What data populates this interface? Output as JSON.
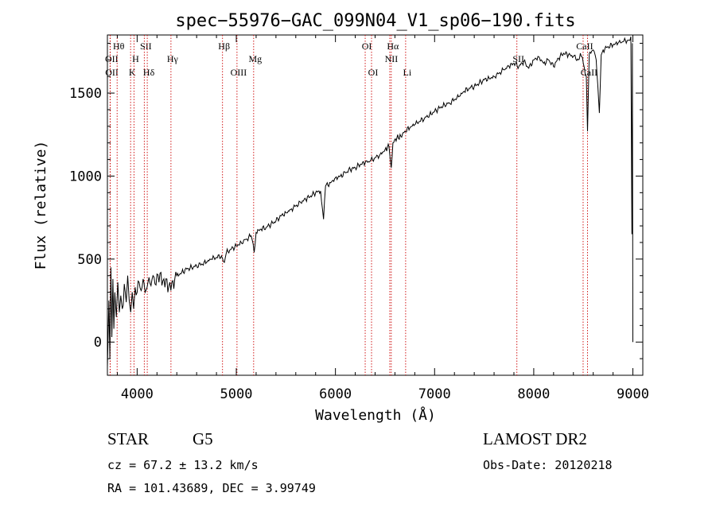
{
  "chart_data": {
    "type": "line",
    "title": "spec−55976−GAC_099N04_V1_sp06−190.fits",
    "xlabel": "Wavelength (Å)",
    "ylabel": "Flux (relative)",
    "xlim": [
      3700,
      9100
    ],
    "ylim": [
      -200,
      1850
    ],
    "x_ticks": [
      {
        "value": 4000,
        "label": "4000"
      },
      {
        "value": 5000,
        "label": "5000"
      },
      {
        "value": 6000,
        "label": "6000"
      },
      {
        "value": 7000,
        "label": "7000"
      },
      {
        "value": 8000,
        "label": "8000"
      },
      {
        "value": 9000,
        "label": "9000"
      }
    ],
    "y_ticks": [
      {
        "value": 0,
        "label": "0"
      },
      {
        "value": 500,
        "label": "500"
      },
      {
        "value": 1000,
        "label": "1000"
      },
      {
        "value": 1500,
        "label": "1500"
      }
    ],
    "series": [
      {
        "color": "#000000",
        "points": [
          [
            3700,
            -150
          ],
          [
            3715,
            250
          ],
          [
            3725,
            -100
          ],
          [
            3735,
            450
          ],
          [
            3745,
            30
          ],
          [
            3755,
            380
          ],
          [
            3765,
            80
          ],
          [
            3775,
            300
          ],
          [
            3790,
            150
          ],
          [
            3805,
            360
          ],
          [
            3820,
            180
          ],
          [
            3835,
            280
          ],
          [
            3850,
            200
          ],
          [
            3870,
            350
          ],
          [
            3890,
            240
          ],
          [
            3905,
            400
          ],
          [
            3920,
            250
          ],
          [
            3935,
            180
          ],
          [
            3950,
            300
          ],
          [
            3965,
            200
          ],
          [
            3980,
            330
          ],
          [
            4000,
            300
          ],
          [
            4020,
            360
          ],
          [
            4040,
            310
          ],
          [
            4060,
            380
          ],
          [
            4080,
            300
          ],
          [
            4100,
            330
          ],
          [
            4120,
            390
          ],
          [
            4140,
            340
          ],
          [
            4160,
            400
          ],
          [
            4180,
            350
          ],
          [
            4200,
            410
          ],
          [
            4220,
            360
          ],
          [
            4240,
            420
          ],
          [
            4260,
            370
          ],
          [
            4280,
            330
          ],
          [
            4300,
            380
          ],
          [
            4320,
            340
          ],
          [
            4340,
            310
          ],
          [
            4360,
            370
          ],
          [
            4380,
            380
          ],
          [
            4400,
            400
          ],
          [
            4450,
            420
          ],
          [
            4500,
            440
          ],
          [
            4550,
            450
          ],
          [
            4600,
            460
          ],
          [
            4650,
            470
          ],
          [
            4700,
            480
          ],
          [
            4750,
            500
          ],
          [
            4800,
            510
          ],
          [
            4850,
            520
          ],
          [
            4880,
            480
          ],
          [
            4900,
            540
          ],
          [
            4950,
            560
          ],
          [
            5000,
            580
          ],
          [
            5050,
            600
          ],
          [
            5100,
            620
          ],
          [
            5150,
            640
          ],
          [
            5180,
            540
          ],
          [
            5200,
            660
          ],
          [
            5250,
            680
          ],
          [
            5300,
            690
          ],
          [
            5350,
            710
          ],
          [
            5400,
            730
          ],
          [
            5450,
            760
          ],
          [
            5500,
            780
          ],
          [
            5550,
            800
          ],
          [
            5600,
            820
          ],
          [
            5650,
            840
          ],
          [
            5700,
            860
          ],
          [
            5750,
            880
          ],
          [
            5800,
            900
          ],
          [
            5850,
            910
          ],
          [
            5880,
            740
          ],
          [
            5900,
            940
          ],
          [
            5950,
            960
          ],
          [
            6000,
            990
          ],
          [
            6050,
            1000
          ],
          [
            6100,
            1020
          ],
          [
            6150,
            1040
          ],
          [
            6200,
            1050
          ],
          [
            6250,
            1070
          ],
          [
            6300,
            1080
          ],
          [
            6350,
            1090
          ],
          [
            6400,
            1110
          ],
          [
            6450,
            1130
          ],
          [
            6500,
            1160
          ],
          [
            6540,
            1180
          ],
          [
            6563,
            1050
          ],
          [
            6580,
            1200
          ],
          [
            6620,
            1230
          ],
          [
            6660,
            1240
          ],
          [
            6700,
            1270
          ],
          [
            6750,
            1290
          ],
          [
            6800,
            1310
          ],
          [
            6850,
            1330
          ],
          [
            6900,
            1350
          ],
          [
            6950,
            1370
          ],
          [
            7000,
            1390
          ],
          [
            7050,
            1410
          ],
          [
            7100,
            1430
          ],
          [
            7150,
            1440
          ],
          [
            7200,
            1460
          ],
          [
            7250,
            1480
          ],
          [
            7300,
            1510
          ],
          [
            7350,
            1530
          ],
          [
            7400,
            1540
          ],
          [
            7450,
            1560
          ],
          [
            7500,
            1580
          ],
          [
            7550,
            1590
          ],
          [
            7600,
            1600
          ],
          [
            7650,
            1620
          ],
          [
            7700,
            1640
          ],
          [
            7750,
            1660
          ],
          [
            7800,
            1680
          ],
          [
            7850,
            1660
          ],
          [
            7900,
            1690
          ],
          [
            7950,
            1650
          ],
          [
            8000,
            1700
          ],
          [
            8050,
            1720
          ],
          [
            8100,
            1680
          ],
          [
            8150,
            1700
          ],
          [
            8200,
            1660
          ],
          [
            8250,
            1710
          ],
          [
            8300,
            1740
          ],
          [
            8350,
            1730
          ],
          [
            8400,
            1720
          ],
          [
            8450,
            1700
          ],
          [
            8470,
            1740
          ],
          [
            8500,
            1680
          ],
          [
            8530,
            1600
          ],
          [
            8542,
            1270
          ],
          [
            8560,
            1740
          ],
          [
            8600,
            1760
          ],
          [
            8630,
            1700
          ],
          [
            8662,
            1380
          ],
          [
            8680,
            1730
          ],
          [
            8700,
            1760
          ],
          [
            8750,
            1780
          ],
          [
            8800,
            1790
          ],
          [
            8850,
            1800
          ],
          [
            8900,
            1810
          ],
          [
            8950,
            1820
          ],
          [
            8980,
            1840
          ],
          [
            8990,
            650
          ],
          [
            8995,
            1800
          ],
          [
            9000,
            0
          ]
        ]
      }
    ],
    "line_markers": [
      {
        "wavelength": 3727,
        "label": "OII",
        "row": 1
      },
      {
        "wavelength": 3729,
        "label": "OII",
        "row": 2
      },
      {
        "wavelength": 3798,
        "label": "Hθ",
        "row": 0
      },
      {
        "wavelength": 3934,
        "label": "K",
        "row": 2
      },
      {
        "wavelength": 3968,
        "label": "H",
        "row": 1
      },
      {
        "wavelength": 4072,
        "label": "SII",
        "row": 0
      },
      {
        "wavelength": 4102,
        "label": "Hδ",
        "row": 2
      },
      {
        "wavelength": 4341,
        "label": "Hγ",
        "row": 1
      },
      {
        "wavelength": 4861,
        "label": "Hβ",
        "row": 0
      },
      {
        "wavelength": 5007,
        "label": "OIII",
        "row": 2
      },
      {
        "wavelength": 5175,
        "label": "Mg",
        "row": 1
      },
      {
        "wavelength": 6300,
        "label": "OI",
        "row": 0
      },
      {
        "wavelength": 6364,
        "label": "OI",
        "row": 2
      },
      {
        "wavelength": 6548,
        "label": "NII",
        "row": 1
      },
      {
        "wavelength": 6563,
        "label": "Hα",
        "row": 0
      },
      {
        "wavelength": 6708,
        "label": "Li",
        "row": 2
      },
      {
        "wavelength": 7830,
        "label": "SII",
        "row": 1
      },
      {
        "wavelength": 8498,
        "label": "CaII",
        "row": 0
      },
      {
        "wavelength": 8542,
        "label": "CaII",
        "row": 2
      }
    ]
  },
  "info": {
    "class": "STAR",
    "subclass": "G5",
    "survey": "LAMOST DR2",
    "redshift": "cz = 67.2 ± 13.2 km/s",
    "obs_date": "Obs-Date: 20120218",
    "coords": "RA = 101.43689, DEC =    3.99749"
  }
}
